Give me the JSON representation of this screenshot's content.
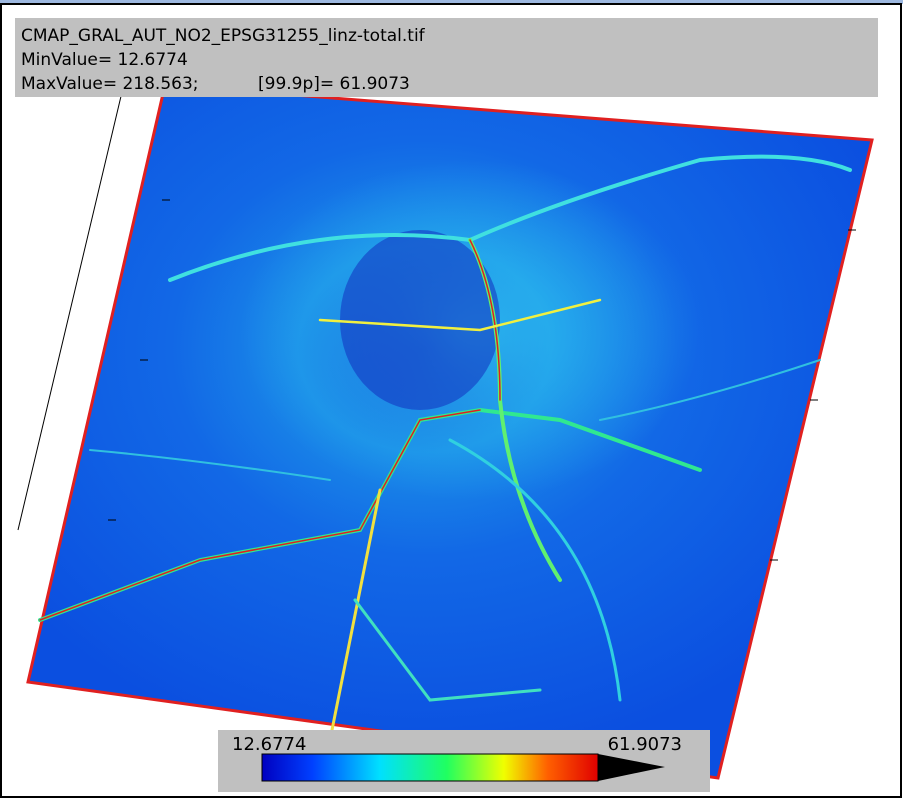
{
  "header": {
    "file_name": "CMAP_GRAL_AUT_NO2_EPSG31255_linz-total.tif",
    "min_line": "MinValue= 12.6774",
    "max_line": "MaxValue= 218.563;",
    "percentile_line": "[99.9p]= 61.9073"
  },
  "colorbar": {
    "min_label": "12.6774",
    "max_label": "61.9073"
  }
}
